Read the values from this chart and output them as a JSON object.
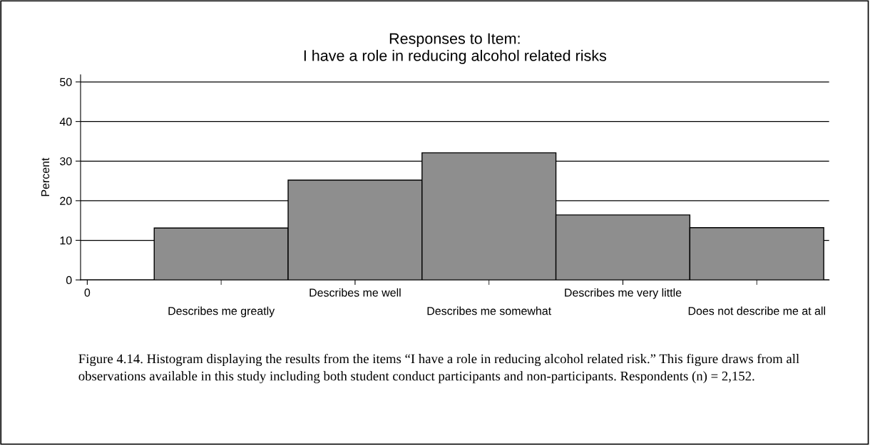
{
  "chart_data": {
    "type": "bar",
    "title": "Responses to Item:\nI have a role in reducing alcohol related risks",
    "ylabel": "Percent",
    "categories": [
      "0",
      "Describes me greatly",
      "Describes me well",
      "Describes me somewhat",
      "Describes me very little",
      "Does not describe me at all"
    ],
    "values": [
      null,
      13.1,
      25.2,
      32.1,
      16.4,
      13.2
    ],
    "color": "#8e8e8e",
    "ylim": [
      0,
      51.8
    ],
    "yticks": [
      0,
      10,
      20,
      30,
      40,
      50
    ],
    "grid": "y",
    "annotations": [
      "Figure 4.14. Histogram displaying the results from the items “I have a role in reducing alcohol related risk.” This figure draws from all observations available in this study including both student conduct participants and non-participants. Respondents (n) = 2,152."
    ]
  }
}
